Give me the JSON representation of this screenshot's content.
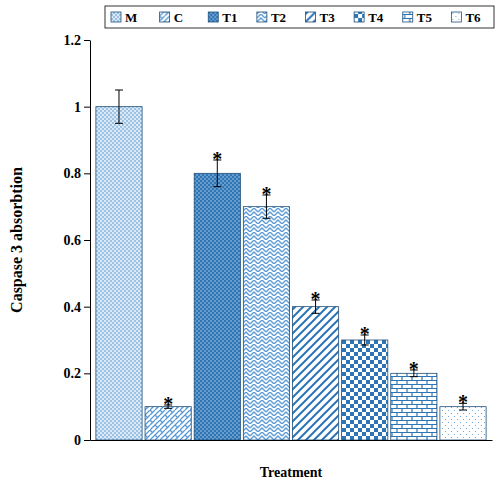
{
  "chart_data": {
    "type": "bar",
    "x_label": "Treatment",
    "y_label": "Caspase 3 absorbtion",
    "categories": [
      "M",
      "C",
      "T1",
      "T2",
      "T3",
      "T4",
      "T5",
      "T6"
    ],
    "values": [
      1,
      0.1,
      0.8,
      0.7,
      0.4,
      0.3,
      0.2,
      0.1
    ],
    "errors": [
      0.05,
      0.005,
      0.04,
      0.035,
      0.02,
      0.015,
      0.01,
      0.01
    ],
    "significance": [
      null,
      "*",
      "*",
      "*",
      "*",
      "*",
      "*",
      "*"
    ],
    "colors": [
      "#7fb0dc",
      "#5b9bd5",
      "#2e75b6",
      "#5b9bd5",
      "#2e75b6",
      "#2e75b6",
      "#2e75b6",
      "#5b9bd5"
    ],
    "ylim": [
      0,
      1.2
    ],
    "yticks": [
      0,
      0.2,
      0.4,
      0.6,
      0.8,
      1,
      1.2
    ],
    "tick_labels": "y",
    "legend": "top",
    "grid": false
  }
}
